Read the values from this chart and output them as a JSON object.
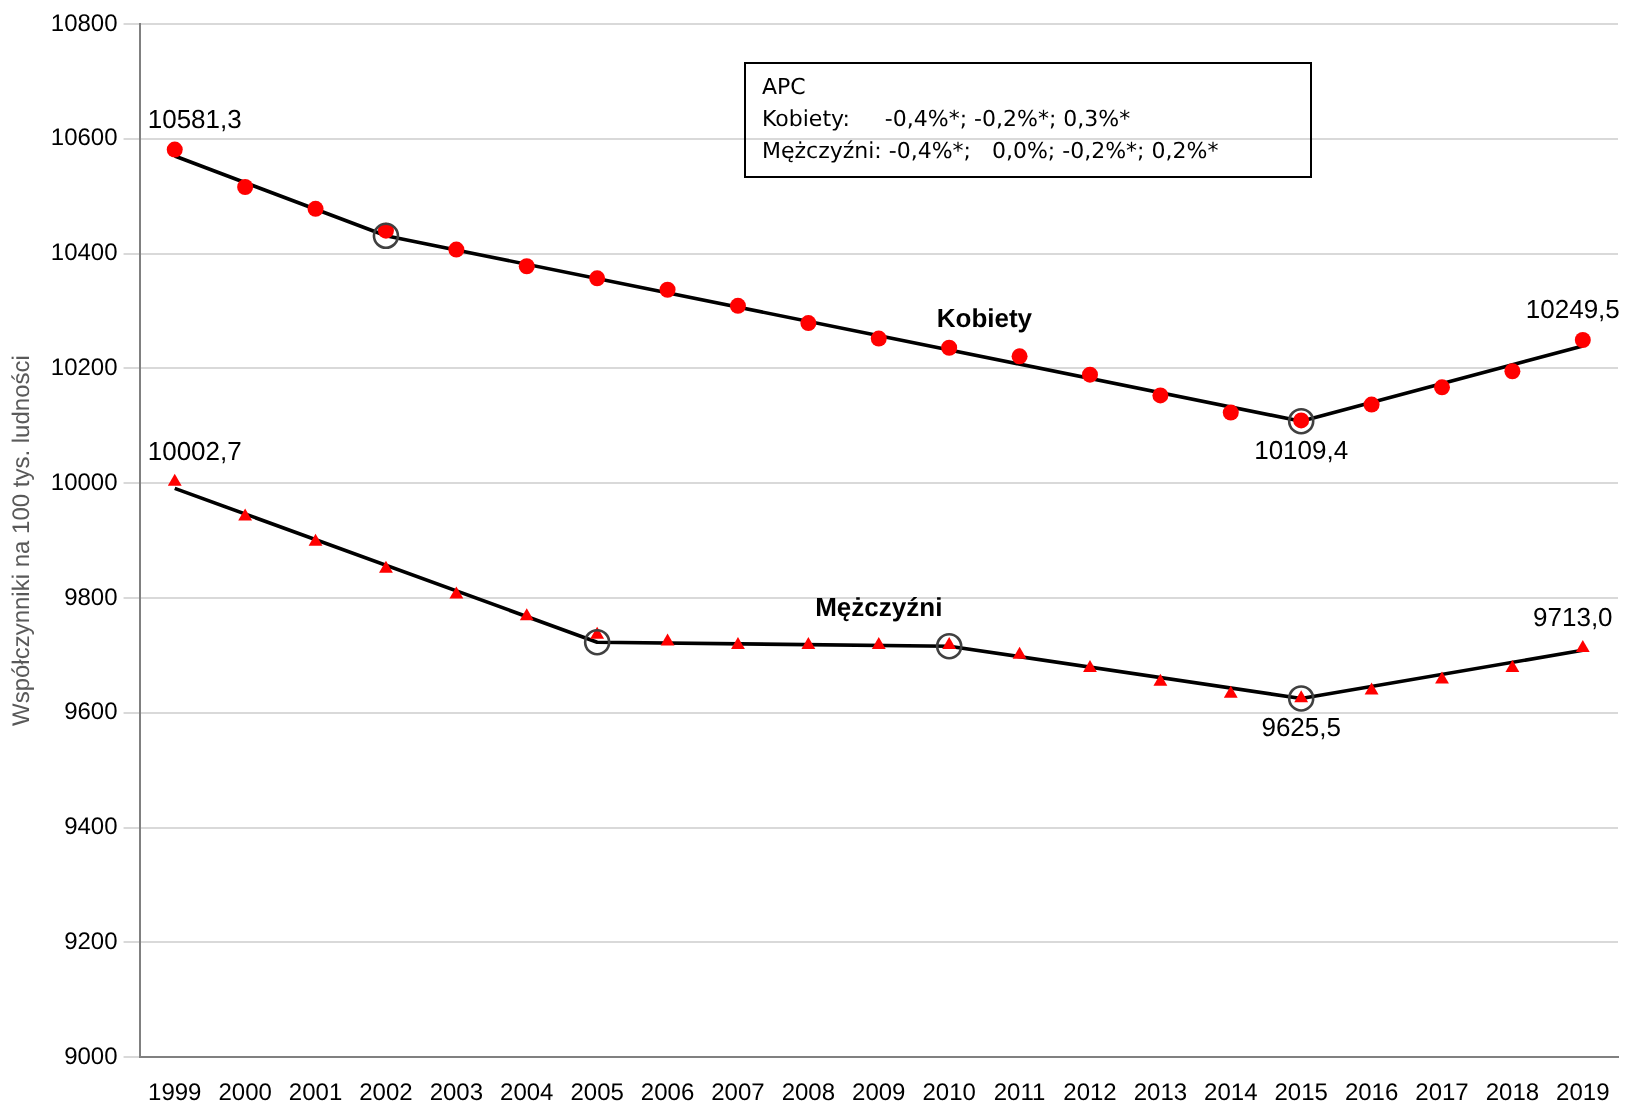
{
  "chart_data": {
    "type": "scatter",
    "ylabel": "Współczynniki na 100 tys. ludności",
    "x": [
      1999,
      2000,
      2001,
      2002,
      2003,
      2004,
      2005,
      2006,
      2007,
      2008,
      2009,
      2010,
      2011,
      2012,
      2013,
      2014,
      2015,
      2016,
      2017,
      2018,
      2019
    ],
    "xlim": [
      1998.5,
      2019.5
    ],
    "xticks": [
      1999,
      2000,
      2001,
      2002,
      2003,
      2004,
      2005,
      2006,
      2007,
      2008,
      2009,
      2010,
      2011,
      2012,
      2013,
      2014,
      2015,
      2016,
      2017,
      2018,
      2019
    ],
    "ylim": [
      9000,
      10800
    ],
    "yticks": [
      9000,
      9200,
      9400,
      9600,
      9800,
      10000,
      10200,
      10400,
      10600,
      10800
    ],
    "grid": "y",
    "legend": false,
    "annotations": [
      "APC",
      "Kobiety:     -0,4%*; -0,2%*; 0,3%*",
      "Mężczyźni: -0,4%*;   0,0%; -0,2%*; 0,2%*"
    ],
    "series": [
      {
        "color": "#ff0000",
        "marker": "circle",
        "values": [
          10581.3,
          10516,
          10478,
          10440,
          10407,
          10378,
          10357,
          10337,
          10309,
          10279,
          10252,
          10236,
          10221,
          10189,
          10153,
          10123,
          10109.4,
          10137,
          10167,
          10195,
          10249.5
        ],
        "value_labels": [
          "10581,3",
          null,
          null,
          null,
          null,
          null,
          null,
          null,
          null,
          null,
          null,
          null,
          null,
          null,
          null,
          null,
          "10109,4",
          null,
          null,
          null,
          "10249,5"
        ]
      },
      {
        "color": "#ff0000",
        "marker": "triangle",
        "values": [
          10002.7,
          9942,
          9898,
          9851,
          9806,
          9768,
          9736,
          9724,
          9718,
          9718,
          9718,
          9718,
          9701,
          9678,
          9654,
          9633,
          9625.5,
          9639,
          9658,
          9678,
          9713.0
        ],
        "value_labels": [
          "10002,7",
          null,
          null,
          null,
          null,
          null,
          null,
          null,
          null,
          null,
          null,
          null,
          null,
          null,
          null,
          null,
          "9625,5",
          null,
          null,
          null,
          "9713,0"
        ]
      },
      {
        "type": "line",
        "name": "Kobiety",
        "color": "#000000",
        "marker": "none",
        "x": [
          1999,
          2002,
          2015,
          2019
        ],
        "values": [
          10570,
          10431,
          10108,
          10239
        ]
      },
      {
        "type": "line",
        "name": "Mężczyźni",
        "color": "#000000",
        "marker": "none",
        "x": [
          1999,
          2005,
          2010,
          2015,
          2019
        ],
        "values": [
          9991,
          9723,
          9716,
          9625,
          9709
        ]
      },
      {
        "type": "scatter",
        "color": "#404040",
        "marker": "circle",
        "x": [
          2002,
          2015
        ],
        "values": [
          10431,
          10108
        ]
      },
      {
        "type": "scatter",
        "color": "#404040",
        "marker": "circle",
        "x": [
          2005,
          2010,
          2015
        ],
        "values": [
          9723,
          9716,
          9625
        ]
      }
    ]
  }
}
